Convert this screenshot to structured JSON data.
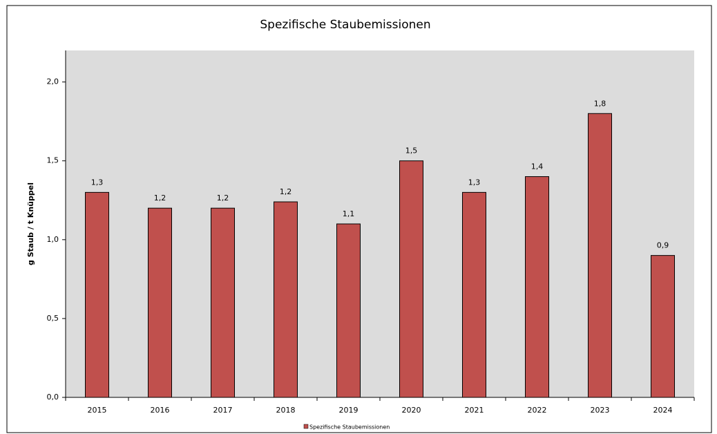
{
  "chart_data": {
    "type": "bar",
    "title": "Spezifische Staubemissionen",
    "y_label": "g Staub / t Knüppel",
    "categories": [
      "2015",
      "2016",
      "2017",
      "2018",
      "2019",
      "2020",
      "2021",
      "2022",
      "2023",
      "2024"
    ],
    "series": [
      {
        "name": "Spezifische Staubemissionen",
        "color": "#c0504d",
        "values": [
          1.3,
          1.2,
          1.2,
          1.24,
          1.1,
          1.5,
          1.3,
          1.4,
          1.8,
          0.9
        ],
        "value_labels": [
          "1,3",
          "1,2",
          "1,2",
          "1,2",
          "1,1",
          "1,5",
          "1,3",
          "1,4",
          "1,8",
          "0,9"
        ]
      }
    ],
    "ylim": [
      0,
      2.2
    ],
    "yticks": [
      {
        "value": 0,
        "label": "0,0"
      },
      {
        "value": 0.5,
        "label": "0,5"
      },
      {
        "value": 1,
        "label": "1,0"
      },
      {
        "value": 1.5,
        "label": "1,5"
      },
      {
        "value": 2,
        "label": "2,0"
      }
    ],
    "legend": "bottom"
  }
}
